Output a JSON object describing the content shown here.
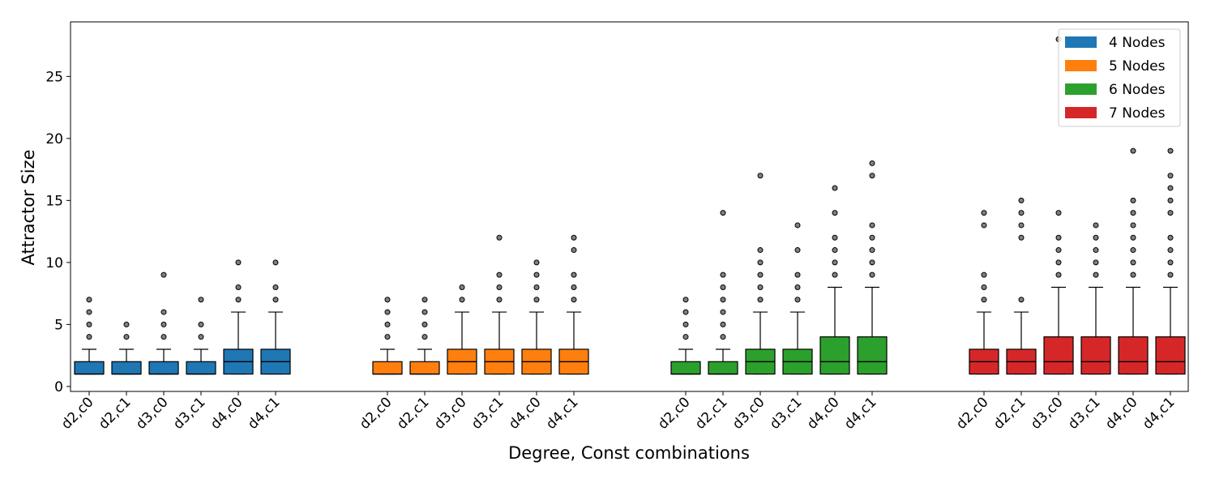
{
  "chart_data": {
    "type": "box",
    "xlabel": "Degree, Const combinations",
    "ylabel": "Attractor Size",
    "ylim": [
      -0.4,
      29.4
    ],
    "yticks": [
      0,
      5,
      10,
      15,
      20,
      25
    ],
    "grid": false,
    "legend_position": "top-right",
    "categories": [
      "d2,c0",
      "d2,c1",
      "d3,c0",
      "d3,c1",
      "d4,c0",
      "d4,c1"
    ],
    "series": [
      {
        "name": "4 Nodes",
        "color": "#1f77b4",
        "boxes": [
          {
            "whislo": 1,
            "q1": 1,
            "med": 1,
            "q3": 2,
            "whishi": 3,
            "fliers": [
              4,
              5,
              6,
              7
            ]
          },
          {
            "whislo": 1,
            "q1": 1,
            "med": 1,
            "q3": 2,
            "whishi": 3,
            "fliers": [
              4,
              5
            ]
          },
          {
            "whislo": 1,
            "q1": 1,
            "med": 1,
            "q3": 2,
            "whishi": 3,
            "fliers": [
              4,
              5,
              6,
              9
            ]
          },
          {
            "whislo": 1,
            "q1": 1,
            "med": 1,
            "q3": 2,
            "whishi": 3,
            "fliers": [
              4,
              5,
              7
            ]
          },
          {
            "whislo": 1,
            "q1": 1,
            "med": 2,
            "q3": 3,
            "whishi": 6,
            "fliers": [
              7,
              8,
              10
            ]
          },
          {
            "whislo": 1,
            "q1": 1,
            "med": 2,
            "q3": 3,
            "whishi": 6,
            "fliers": [
              7,
              8,
              10
            ]
          }
        ]
      },
      {
        "name": "5 Nodes",
        "color": "#ff7f0e",
        "boxes": [
          {
            "whislo": 1,
            "q1": 1,
            "med": 1,
            "q3": 2,
            "whishi": 3,
            "fliers": [
              4,
              5,
              6,
              7
            ]
          },
          {
            "whislo": 1,
            "q1": 1,
            "med": 1,
            "q3": 2,
            "whishi": 3,
            "fliers": [
              4,
              5,
              6,
              7
            ]
          },
          {
            "whislo": 1,
            "q1": 1,
            "med": 2,
            "q3": 3,
            "whishi": 6,
            "fliers": [
              7,
              8
            ]
          },
          {
            "whislo": 1,
            "q1": 1,
            "med": 2,
            "q3": 3,
            "whishi": 6,
            "fliers": [
              7,
              8,
              9,
              12
            ]
          },
          {
            "whislo": 1,
            "q1": 1,
            "med": 2,
            "q3": 3,
            "whishi": 6,
            "fliers": [
              7,
              8,
              9,
              10
            ]
          },
          {
            "whislo": 1,
            "q1": 1,
            "med": 2,
            "q3": 3,
            "whishi": 6,
            "fliers": [
              7,
              8,
              9,
              11,
              12
            ]
          }
        ]
      },
      {
        "name": "6 Nodes",
        "color": "#2ca02c",
        "boxes": [
          {
            "whislo": 1,
            "q1": 1,
            "med": 1,
            "q3": 2,
            "whishi": 3,
            "fliers": [
              4,
              5,
              6,
              7
            ]
          },
          {
            "whislo": 1,
            "q1": 1,
            "med": 1,
            "q3": 2,
            "whishi": 3,
            "fliers": [
              4,
              5,
              6,
              7,
              8,
              9,
              14
            ]
          },
          {
            "whislo": 1,
            "q1": 1,
            "med": 2,
            "q3": 3,
            "whishi": 6,
            "fliers": [
              7,
              8,
              9,
              10,
              11,
              17
            ]
          },
          {
            "whislo": 1,
            "q1": 1,
            "med": 2,
            "q3": 3,
            "whishi": 6,
            "fliers": [
              7,
              8,
              9,
              11,
              13
            ]
          },
          {
            "whislo": 1,
            "q1": 1,
            "med": 2,
            "q3": 4,
            "whishi": 8,
            "fliers": [
              9,
              10,
              11,
              12,
              14,
              16
            ]
          },
          {
            "whislo": 1,
            "q1": 1,
            "med": 2,
            "q3": 4,
            "whishi": 8,
            "fliers": [
              9,
              10,
              11,
              12,
              13,
              17,
              18
            ]
          }
        ]
      },
      {
        "name": "7 Nodes",
        "color": "#d62728",
        "boxes": [
          {
            "whislo": 1,
            "q1": 1,
            "med": 2,
            "q3": 3,
            "whishi": 6,
            "fliers": [
              7,
              8,
              9,
              13,
              14
            ]
          },
          {
            "whislo": 1,
            "q1": 1,
            "med": 2,
            "q3": 3,
            "whishi": 6,
            "fliers": [
              7,
              12,
              13,
              14,
              15
            ]
          },
          {
            "whislo": 1,
            "q1": 1,
            "med": 2,
            "q3": 4,
            "whishi": 8,
            "fliers": [
              9,
              10,
              11,
              12,
              14,
              28
            ]
          },
          {
            "whislo": 1,
            "q1": 1,
            "med": 2,
            "q3": 4,
            "whishi": 8,
            "fliers": [
              9,
              10,
              11,
              12,
              13
            ]
          },
          {
            "whislo": 1,
            "q1": 1,
            "med": 2,
            "q3": 4,
            "whishi": 8,
            "fliers": [
              9,
              10,
              11,
              12,
              13,
              14,
              15,
              19
            ]
          },
          {
            "whislo": 1,
            "q1": 1,
            "med": 2,
            "q3": 4,
            "whishi": 8,
            "fliers": [
              9,
              10,
              11,
              12,
              14,
              15,
              16,
              17,
              19
            ]
          }
        ]
      }
    ]
  }
}
